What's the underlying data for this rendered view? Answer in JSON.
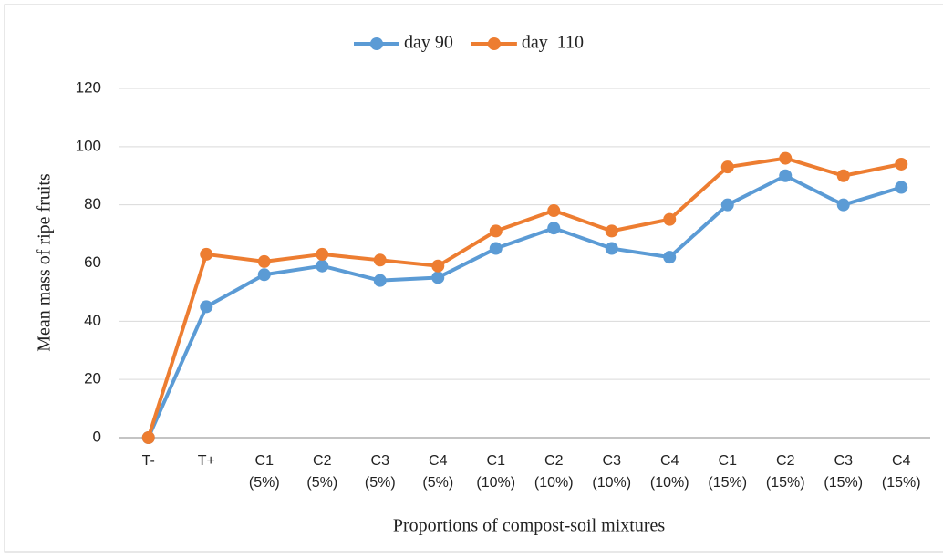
{
  "chart_data": {
    "type": "line",
    "x_label": "Proportions of compost-soil mixtures",
    "y_label": "Mean mass of ripe fruits",
    "categories": [
      "T-",
      "T+",
      "C1 (5%)",
      "C2 (5%)",
      "C3 (5%)",
      "C4 (5%)",
      "C1 (10%)",
      "C2 (10%)",
      "C3 (10%)",
      "C4 (10%)",
      "C1 (15%)",
      "C2 (15%)",
      "C3 (15%)",
      "C4 (15%)"
    ],
    "series": [
      {
        "name": "day 90",
        "color": "#5b9bd5",
        "values": [
          0,
          45,
          56,
          59,
          54,
          55,
          65,
          72,
          65,
          62,
          80,
          90,
          80,
          86
        ]
      },
      {
        "name": "day  110",
        "color": "#ed7d31",
        "values": [
          0,
          63,
          60.5,
          63,
          61,
          59,
          71,
          78,
          71,
          75,
          93,
          96,
          90,
          94
        ]
      }
    ],
    "ylim": [
      0,
      120
    ],
    "yticks": [
      0,
      20,
      40,
      60,
      80,
      100,
      120
    ],
    "grid": true,
    "legend": "top"
  }
}
